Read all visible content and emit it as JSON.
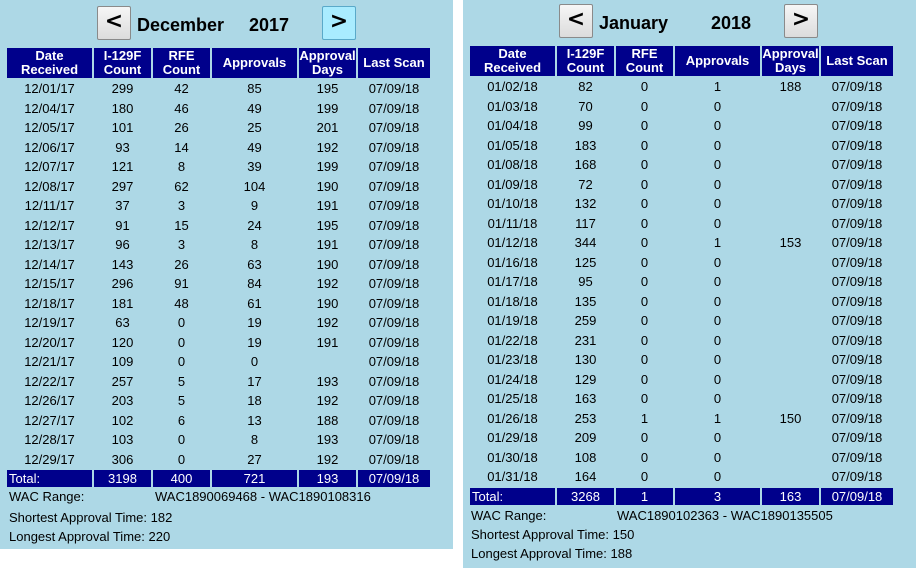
{
  "headers": [
    "Date Received",
    "I-129F Count",
    "RFE Count",
    "Approvals",
    "Approval Days",
    "Last Scan"
  ],
  "left": {
    "nav_prev": "<",
    "nav_next": ">",
    "month": "December",
    "year": "2017",
    "rows": [
      [
        "12/01/17",
        "299",
        "42",
        "85",
        "195",
        "07/09/18"
      ],
      [
        "12/04/17",
        "180",
        "46",
        "49",
        "199",
        "07/09/18"
      ],
      [
        "12/05/17",
        "101",
        "26",
        "25",
        "201",
        "07/09/18"
      ],
      [
        "12/06/17",
        "93",
        "14",
        "49",
        "192",
        "07/09/18"
      ],
      [
        "12/07/17",
        "121",
        "8",
        "39",
        "199",
        "07/09/18"
      ],
      [
        "12/08/17",
        "297",
        "62",
        "104",
        "190",
        "07/09/18"
      ],
      [
        "12/11/17",
        "37",
        "3",
        "9",
        "191",
        "07/09/18"
      ],
      [
        "12/12/17",
        "91",
        "15",
        "24",
        "195",
        "07/09/18"
      ],
      [
        "12/13/17",
        "96",
        "3",
        "8",
        "191",
        "07/09/18"
      ],
      [
        "12/14/17",
        "143",
        "26",
        "63",
        "190",
        "07/09/18"
      ],
      [
        "12/15/17",
        "296",
        "91",
        "84",
        "192",
        "07/09/18"
      ],
      [
        "12/18/17",
        "181",
        "48",
        "61",
        "190",
        "07/09/18"
      ],
      [
        "12/19/17",
        "63",
        "0",
        "19",
        "192",
        "07/09/18"
      ],
      [
        "12/20/17",
        "120",
        "0",
        "19",
        "191",
        "07/09/18"
      ],
      [
        "12/21/17",
        "109",
        "0",
        "0",
        "",
        "07/09/18"
      ],
      [
        "12/22/17",
        "257",
        "5",
        "17",
        "193",
        "07/09/18"
      ],
      [
        "12/26/17",
        "203",
        "5",
        "18",
        "192",
        "07/09/18"
      ],
      [
        "12/27/17",
        "102",
        "6",
        "13",
        "188",
        "07/09/18"
      ],
      [
        "12/28/17",
        "103",
        "0",
        "8",
        "193",
        "07/09/18"
      ],
      [
        "12/29/17",
        "306",
        "0",
        "27",
        "192",
        "07/09/18"
      ]
    ],
    "total": [
      "Total:",
      "3198",
      "400",
      "721",
      "193",
      "07/09/18"
    ],
    "wac_label": "WAC Range:",
    "wac_value": "WAC1890069468 - WAC1890108316",
    "shortest_label": "Shortest Approval Time:",
    "shortest_value": "182",
    "longest_label": "Longest Approval Time:",
    "longest_value": "220"
  },
  "right": {
    "nav_prev": "<",
    "nav_next": ">",
    "month": "January",
    "year": "2018",
    "rows": [
      [
        "01/02/18",
        "82",
        "0",
        "1",
        "188",
        "07/09/18"
      ],
      [
        "01/03/18",
        "70",
        "0",
        "0",
        "",
        "07/09/18"
      ],
      [
        "01/04/18",
        "99",
        "0",
        "0",
        "",
        "07/09/18"
      ],
      [
        "01/05/18",
        "183",
        "0",
        "0",
        "",
        "07/09/18"
      ],
      [
        "01/08/18",
        "168",
        "0",
        "0",
        "",
        "07/09/18"
      ],
      [
        "01/09/18",
        "72",
        "0",
        "0",
        "",
        "07/09/18"
      ],
      [
        "01/10/18",
        "132",
        "0",
        "0",
        "",
        "07/09/18"
      ],
      [
        "01/11/18",
        "117",
        "0",
        "0",
        "",
        "07/09/18"
      ],
      [
        "01/12/18",
        "344",
        "0",
        "1",
        "153",
        "07/09/18"
      ],
      [
        "01/16/18",
        "125",
        "0",
        "0",
        "",
        "07/09/18"
      ],
      [
        "01/17/18",
        "95",
        "0",
        "0",
        "",
        "07/09/18"
      ],
      [
        "01/18/18",
        "135",
        "0",
        "0",
        "",
        "07/09/18"
      ],
      [
        "01/19/18",
        "259",
        "0",
        "0",
        "",
        "07/09/18"
      ],
      [
        "01/22/18",
        "231",
        "0",
        "0",
        "",
        "07/09/18"
      ],
      [
        "01/23/18",
        "130",
        "0",
        "0",
        "",
        "07/09/18"
      ],
      [
        "01/24/18",
        "129",
        "0",
        "0",
        "",
        "07/09/18"
      ],
      [
        "01/25/18",
        "163",
        "0",
        "0",
        "",
        "07/09/18"
      ],
      [
        "01/26/18",
        "253",
        "1",
        "1",
        "150",
        "07/09/18"
      ],
      [
        "01/29/18",
        "209",
        "0",
        "0",
        "",
        "07/09/18"
      ],
      [
        "01/30/18",
        "108",
        "0",
        "0",
        "",
        "07/09/18"
      ],
      [
        "01/31/18",
        "164",
        "0",
        "0",
        "",
        "07/09/18"
      ]
    ],
    "total": [
      "Total:",
      "3268",
      "1",
      "3",
      "163",
      "07/09/18"
    ],
    "wac_label": "WAC Range:",
    "wac_value": "WAC1890102363 - WAC1890135505",
    "shortest_label": "Shortest Approval Time:",
    "shortest_value": "150",
    "longest_label": "Longest Approval Time:",
    "longest_value": "188"
  }
}
